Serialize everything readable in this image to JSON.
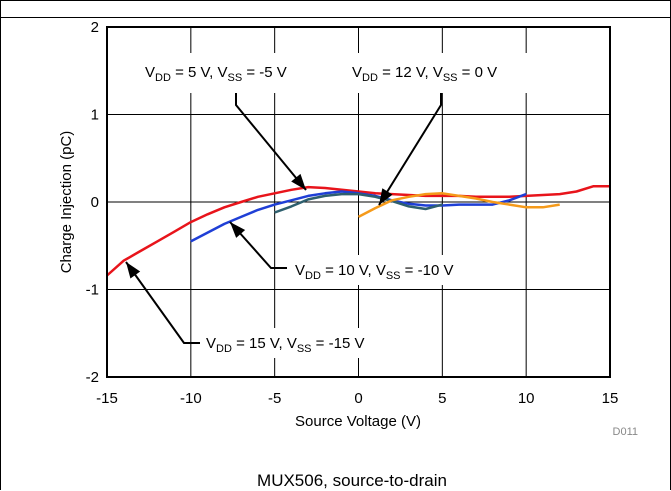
{
  "chart_data": {
    "type": "line",
    "xlabel": "Source Voltage (V)",
    "ylabel": "Charge Injection (pC)",
    "xlim": [
      -15,
      15
    ],
    "ylim": [
      -2,
      2
    ],
    "xticks": [
      -15,
      -10,
      -5,
      0,
      5,
      10,
      15
    ],
    "yticks": [
      -2,
      -1,
      0,
      1,
      2
    ],
    "grid": true,
    "series": [
      {
        "name": "V_DD = 15 V, V_SS = -15 V",
        "color": "#e8141b",
        "x": [
          -15,
          -14,
          -13,
          -12,
          -11,
          -10,
          -9,
          -8,
          -7,
          -6,
          -5,
          -4,
          -3,
          -2,
          -1,
          0,
          1,
          2,
          3,
          4,
          5,
          6,
          7,
          8,
          9,
          10,
          11,
          12,
          13,
          14,
          15
        ],
        "y": [
          -0.84,
          -0.67,
          -0.56,
          -0.45,
          -0.34,
          -0.23,
          -0.14,
          -0.06,
          0.0,
          0.06,
          0.1,
          0.14,
          0.17,
          0.16,
          0.14,
          0.12,
          0.1,
          0.09,
          0.08,
          0.07,
          0.07,
          0.07,
          0.06,
          0.06,
          0.06,
          0.07,
          0.08,
          0.09,
          0.12,
          0.18,
          0.18
        ]
      },
      {
        "name": "V_DD = 10 V, V_SS = -10 V",
        "color": "#1f3fd6",
        "x": [
          -10,
          -9,
          -8,
          -7,
          -6,
          -5,
          -4,
          -3,
          -2,
          -1,
          0,
          1,
          2,
          3,
          4,
          5,
          6,
          7,
          8,
          9,
          10
        ],
        "y": [
          -0.45,
          -0.35,
          -0.25,
          -0.17,
          -0.09,
          -0.03,
          0.02,
          0.07,
          0.1,
          0.12,
          0.1,
          0.07,
          0.02,
          -0.02,
          -0.04,
          -0.04,
          -0.03,
          -0.03,
          -0.03,
          0.02,
          0.09
        ]
      },
      {
        "name": "V_DD = 5 V, V_SS = -5 V",
        "color": "#2e5f6e",
        "x": [
          -5,
          -4,
          -3,
          -2,
          -1,
          0,
          1,
          2,
          3,
          4,
          5
        ],
        "y": [
          -0.12,
          -0.05,
          0.03,
          0.07,
          0.09,
          0.09,
          0.06,
          0.01,
          -0.05,
          -0.08,
          -0.03
        ]
      },
      {
        "name": "V_DD = 12 V, V_SS = 0 V",
        "color": "#f59a1a",
        "x": [
          0,
          1,
          2,
          3,
          4,
          5,
          6,
          7,
          8,
          9,
          10,
          11,
          12
        ],
        "y": [
          -0.17,
          -0.07,
          0.02,
          0.06,
          0.09,
          0.1,
          0.07,
          0.04,
          0.0,
          -0.03,
          -0.06,
          -0.06,
          -0.03
        ]
      }
    ],
    "annotations": [
      {
        "main": "V",
        "sub1": "DD",
        "mid": " = 5 V, V",
        "sub2": "SS",
        "tail": " = -5 V"
      },
      {
        "main": "V",
        "sub1": "DD",
        "mid": " = 12 V, V",
        "sub2": "SS",
        "tail": " = 0 V"
      },
      {
        "main": "V",
        "sub1": "DD",
        "mid": " = 10 V, V",
        "sub2": "SS",
        "tail": " = -10 V"
      },
      {
        "main": "V",
        "sub1": "DD",
        "mid": " = 15 V, V",
        "sub2": "SS",
        "tail": " = -15 V"
      }
    ],
    "figure_id": "D011",
    "caption": "MUX506, source-to-drain"
  }
}
